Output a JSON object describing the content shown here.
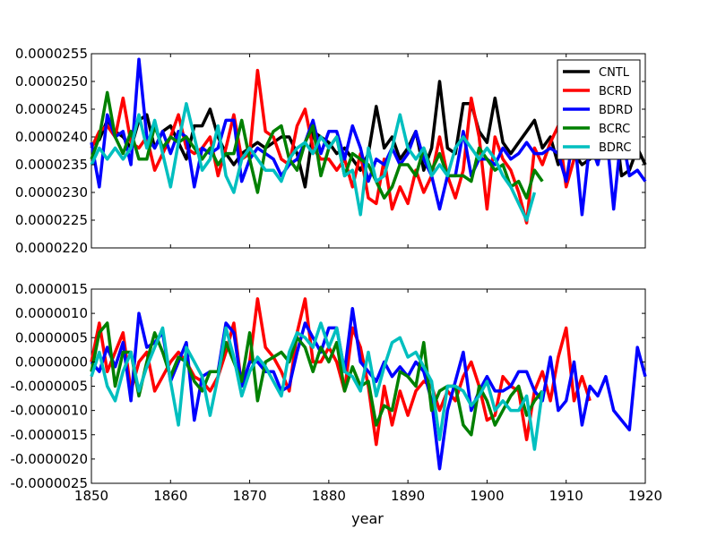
{
  "chart_data": [
    {
      "type": "line",
      "panel": "top",
      "xlabel": "",
      "ylabel": "",
      "xlim": [
        1850,
        1920
      ],
      "ylim": [
        2.2e-05,
        2.55e-05
      ],
      "yticks": [
        2.2e-05,
        2.25e-05,
        2.3e-05,
        2.35e-05,
        2.4e-05,
        2.45e-05,
        2.5e-05,
        2.55e-05
      ],
      "ytick_labels": [
        "0.0000220",
        "0.0000225",
        "0.0000230",
        "0.0000235",
        "0.0000240",
        "0.0000245",
        "0.0000250",
        "0.0000255"
      ],
      "legend": {
        "position": "top-right",
        "entries": [
          "CNTL",
          "BCRD",
          "BDRD",
          "BCRC",
          "BDRC"
        ]
      },
      "series": [
        {
          "name": "CNTL",
          "color": "#000000",
          "x_start": 1850,
          "values": [
            2.385e-05,
            2.395e-05,
            2.43e-05,
            2.41e-05,
            2.4e-05,
            2.38e-05,
            2.43e-05,
            2.44e-05,
            2.38e-05,
            2.41e-05,
            2.42e-05,
            2.39e-05,
            2.36e-05,
            2.42e-05,
            2.42e-05,
            2.45e-05,
            2.4e-05,
            2.37e-05,
            2.35e-05,
            2.37e-05,
            2.38e-05,
            2.39e-05,
            2.38e-05,
            2.39e-05,
            2.4e-05,
            2.4e-05,
            2.37e-05,
            2.31e-05,
            2.41e-05,
            2.4e-05,
            2.39e-05,
            2.37e-05,
            2.38e-05,
            2.36e-05,
            2.34e-05,
            2.37e-05,
            2.455e-05,
            2.38e-05,
            2.4e-05,
            2.36e-05,
            2.38e-05,
            2.41e-05,
            2.34e-05,
            2.38e-05,
            2.5e-05,
            2.38e-05,
            2.37e-05,
            2.46e-05,
            2.46e-05,
            2.41e-05,
            2.39e-05,
            2.47e-05,
            2.39e-05,
            2.37e-05,
            2.39e-05,
            2.41e-05,
            2.43e-05,
            2.38e-05,
            2.4e-05,
            2.35e-05,
            2.41e-05,
            2.37e-05,
            2.35e-05,
            2.36e-05,
            2.43e-05,
            2.41e-05,
            2.45e-05,
            2.33e-05,
            2.34e-05,
            2.38e-05,
            2.35e-05
          ]
        },
        {
          "name": "BCRD",
          "color": "#ff0000",
          "x_start": 1850,
          "values": [
            2.38e-05,
            2.41e-05,
            2.42e-05,
            2.4e-05,
            2.47e-05,
            2.39e-05,
            2.38e-05,
            2.4e-05,
            2.34e-05,
            2.37e-05,
            2.4e-05,
            2.44e-05,
            2.38e-05,
            2.37e-05,
            2.38e-05,
            2.4e-05,
            2.33e-05,
            2.38e-05,
            2.44e-05,
            2.36e-05,
            2.37e-05,
            2.52e-05,
            2.41e-05,
            2.4e-05,
            2.36e-05,
            2.35e-05,
            2.42e-05,
            2.45e-05,
            2.38e-05,
            2.36e-05,
            2.36e-05,
            2.34e-05,
            2.36e-05,
            2.31e-05,
            2.37e-05,
            2.29e-05,
            2.28e-05,
            2.36e-05,
            2.27e-05,
            2.31e-05,
            2.28e-05,
            2.34e-05,
            2.3e-05,
            2.33e-05,
            2.4e-05,
            2.33e-05,
            2.29e-05,
            2.34e-05,
            2.47e-05,
            2.4e-05,
            2.27e-05,
            2.4e-05,
            2.36e-05,
            2.34e-05,
            2.3e-05,
            2.245e-05,
            2.38e-05,
            2.35e-05,
            2.39e-05,
            2.42e-05,
            2.31e-05,
            2.36e-05,
            2.37e-05,
            2.36e-05
          ]
        },
        {
          "name": "BDRD",
          "color": "#0000ff",
          "x_start": 1850,
          "values": [
            2.39e-05,
            2.31e-05,
            2.44e-05,
            2.4e-05,
            2.41e-05,
            2.35e-05,
            2.54e-05,
            2.4e-05,
            2.38e-05,
            2.41e-05,
            2.37e-05,
            2.41e-05,
            2.4e-05,
            2.31e-05,
            2.38e-05,
            2.37e-05,
            2.38e-05,
            2.43e-05,
            2.43e-05,
            2.32e-05,
            2.36e-05,
            2.38e-05,
            2.37e-05,
            2.36e-05,
            2.33e-05,
            2.35e-05,
            2.36e-05,
            2.39e-05,
            2.43e-05,
            2.37e-05,
            2.41e-05,
            2.41e-05,
            2.36e-05,
            2.42e-05,
            2.38e-05,
            2.32e-05,
            2.36e-05,
            2.35e-05,
            2.38e-05,
            2.35e-05,
            2.37e-05,
            2.41e-05,
            2.36e-05,
            2.33e-05,
            2.27e-05,
            2.33e-05,
            2.33e-05,
            2.41e-05,
            2.33e-05,
            2.36e-05,
            2.36e-05,
            2.35e-05,
            2.38e-05,
            2.36e-05,
            2.37e-05,
            2.39e-05,
            2.37e-05,
            2.37e-05,
            2.38e-05,
            2.37e-05,
            2.32e-05,
            2.41e-05,
            2.26e-05,
            2.39e-05,
            2.35e-05,
            2.42e-05,
            2.27e-05,
            2.41e-05,
            2.33e-05,
            2.34e-05,
            2.32e-05
          ]
        },
        {
          "name": "BCRC",
          "color": "#008000",
          "x_start": 1850,
          "values": [
            2.36e-05,
            2.4e-05,
            2.48e-05,
            2.4e-05,
            2.37e-05,
            2.41e-05,
            2.36e-05,
            2.36e-05,
            2.42e-05,
            2.38e-05,
            2.4e-05,
            2.39e-05,
            2.4e-05,
            2.38e-05,
            2.36e-05,
            2.38e-05,
            2.35e-05,
            2.37e-05,
            2.37e-05,
            2.43e-05,
            2.36e-05,
            2.3e-05,
            2.38e-05,
            2.41e-05,
            2.42e-05,
            2.36e-05,
            2.34e-05,
            2.39e-05,
            2.42e-05,
            2.33e-05,
            2.38e-05,
            2.4e-05,
            2.33e-05,
            2.37e-05,
            2.36e-05,
            2.35e-05,
            2.32e-05,
            2.29e-05,
            2.31e-05,
            2.35e-05,
            2.35e-05,
            2.33e-05,
            2.38e-05,
            2.34e-05,
            2.37e-05,
            2.33e-05,
            2.33e-05,
            2.33e-05,
            2.32e-05,
            2.38e-05,
            2.36e-05,
            2.34e-05,
            2.35e-05,
            2.31e-05,
            2.32e-05,
            2.29e-05,
            2.34e-05,
            2.32e-05
          ]
        },
        {
          "name": "BDRC",
          "color": "#00bfbf",
          "x_start": 1850,
          "values": [
            2.35e-05,
            2.38e-05,
            2.36e-05,
            2.38e-05,
            2.36e-05,
            2.38e-05,
            2.44e-05,
            2.38e-05,
            2.43e-05,
            2.37e-05,
            2.31e-05,
            2.39e-05,
            2.46e-05,
            2.4e-05,
            2.34e-05,
            2.36e-05,
            2.42e-05,
            2.33e-05,
            2.3e-05,
            2.36e-05,
            2.38e-05,
            2.36e-05,
            2.34e-05,
            2.34e-05,
            2.32e-05,
            2.36e-05,
            2.38e-05,
            2.39e-05,
            2.37e-05,
            2.4e-05,
            2.38e-05,
            2.4e-05,
            2.33e-05,
            2.34e-05,
            2.26e-05,
            2.38e-05,
            2.32e-05,
            2.33e-05,
            2.38e-05,
            2.44e-05,
            2.38e-05,
            2.36e-05,
            2.38e-05,
            2.33e-05,
            2.35e-05,
            2.33e-05,
            2.38e-05,
            2.4e-05,
            2.38e-05,
            2.36e-05,
            2.38e-05,
            2.36e-05,
            2.33e-05,
            2.31e-05,
            2.28e-05,
            2.25e-05,
            2.3e-05
          ]
        }
      ]
    },
    {
      "type": "line",
      "panel": "bottom",
      "xlabel": "year",
      "ylabel": "",
      "xlim": [
        1850,
        1920
      ],
      "ylim": [
        -2.5e-06,
        1.5e-06
      ],
      "xticks": [
        1850,
        1860,
        1870,
        1880,
        1890,
        1900,
        1910,
        1920
      ],
      "xtick_labels": [
        "1850",
        "1860",
        "1870",
        "1880",
        "1890",
        "1900",
        "1910",
        "1920"
      ],
      "yticks": [
        -2.5e-06,
        -2e-06,
        -1.5e-06,
        -1e-06,
        -5e-07,
        0,
        5e-07,
        1e-06,
        1.5e-06
      ],
      "ytick_labels": [
        "-0.0000025",
        "-0.0000020",
        "-0.0000015",
        "-0.0000010",
        "-0.0000005",
        "0.0000000",
        "0.0000005",
        "0.0000010",
        "0.0000015"
      ],
      "series": [
        {
          "name": "BCRD",
          "color": "#ff0000",
          "x_start": 1850,
          "values": [
            0.0,
            8e-07,
            -2e-07,
            2e-07,
            6e-07,
            -6e-07,
            0.0,
            2e-07,
            -6e-07,
            -3e-07,
            0.0,
            2e-07,
            0.0,
            -3e-07,
            -4e-07,
            -6e-07,
            -3e-07,
            2e-07,
            8e-07,
            -5e-07,
            0.0,
            1.3e-06,
            3e-07,
            1e-07,
            -2e-07,
            -6e-07,
            6e-07,
            1.3e-06,
            0.0,
            0.0,
            3e-07,
            0.0,
            -6e-07,
            7e-07,
            3e-07,
            -5e-07,
            -1.7e-06,
            -5e-07,
            -1.3e-06,
            -6e-07,
            -1.1e-06,
            -6e-07,
            -4e-07,
            -5e-07,
            -1e-06,
            -6e-07,
            -8e-07,
            -3e-07,
            0.0,
            -5e-07,
            -1.2e-06,
            -1.1e-06,
            -3e-07,
            -5e-07,
            -6e-07,
            -1.6e-06,
            -6e-07,
            -2e-07,
            -8e-07,
            1e-07,
            7e-07,
            -8e-07,
            -3e-07,
            -8e-07
          ]
        },
        {
          "name": "BDRD",
          "color": "#0000ff",
          "x_start": 1850,
          "values": [
            0.0,
            -2e-07,
            3e-07,
            -1e-07,
            4e-07,
            -8e-07,
            1e-06,
            3e-07,
            4e-07,
            6e-07,
            -4e-07,
            0.0,
            4e-07,
            -1.2e-06,
            -3e-07,
            -2e-07,
            -2e-07,
            8e-07,
            6e-07,
            -5e-07,
            0.0,
            0.0,
            -2e-07,
            -2e-07,
            -6e-07,
            -5e-07,
            2e-07,
            8e-07,
            5e-07,
            2e-07,
            7e-07,
            7e-07,
            -2e-07,
            1.1e-06,
            0.0,
            -2e-07,
            -4e-07,
            0.0,
            -3e-07,
            -1e-07,
            -3e-07,
            0.0,
            -2e-07,
            -8e-07,
            -2.2e-06,
            -1e-06,
            -4e-07,
            2e-07,
            -1e-06,
            -6e-07,
            -3e-07,
            -6e-07,
            -6e-07,
            -5e-07,
            -2e-07,
            -2e-07,
            -6e-07,
            -8e-07,
            1e-07,
            -1e-06,
            -8e-07,
            0.0,
            -1.3e-06,
            -5e-07,
            -7e-07,
            -3e-07,
            -1e-06,
            -1.2e-06,
            -1.4e-06,
            3e-07,
            -3e-07
          ]
        },
        {
          "name": "BCRC",
          "color": "#008000",
          "x_start": 1850,
          "values": [
            -2e-07,
            6e-07,
            8e-07,
            -5e-07,
            2e-07,
            2e-07,
            -7e-07,
            0.0,
            6e-07,
            2e-07,
            -3e-07,
            1e-07,
            0.0,
            -4e-07,
            -6e-07,
            -2e-07,
            -2e-07,
            4e-07,
            0.0,
            -4e-07,
            6e-07,
            -8e-07,
            0.0,
            1e-07,
            2e-07,
            0.0,
            5e-07,
            3e-07,
            -2e-07,
            3e-07,
            0.0,
            4e-07,
            -6e-07,
            -1e-07,
            -5e-07,
            -4e-07,
            -1.3e-06,
            -9e-07,
            -1e-06,
            -2e-07,
            -3e-07,
            -5e-07,
            4e-07,
            -1e-06,
            -6e-07,
            -5e-07,
            -5e-07,
            -1.3e-06,
            -1.5e-06,
            -5e-07,
            -8e-07,
            -1.3e-06,
            -1e-06,
            -7e-07,
            -5e-07,
            -1.1e-06,
            -8e-07,
            -6e-07
          ]
        },
        {
          "name": "BDRC",
          "color": "#00bfbf",
          "x_start": 1850,
          "values": [
            -3e-07,
            2e-07,
            -5e-07,
            -8e-07,
            -2e-07,
            2e-07,
            -6e-07,
            -1e-07,
            3e-07,
            7e-07,
            -4e-07,
            -1.3e-06,
            3e-07,
            0.0,
            -3e-07,
            -1.1e-06,
            -3e-07,
            7e-07,
            1e-07,
            -7e-07,
            -2e-07,
            1e-07,
            -1e-07,
            -4e-07,
            -7e-07,
            2e-07,
            6e-07,
            5e-07,
            3e-07,
            8e-07,
            3e-07,
            7e-07,
            -2e-07,
            -3e-07,
            -6e-07,
            2e-07,
            -7e-07,
            -1e-07,
            4e-07,
            5e-07,
            1e-07,
            2e-07,
            -1e-07,
            -4e-07,
            -1.6e-06,
            -5e-07,
            -5e-07,
            -6e-07,
            -9e-07,
            -7e-07,
            -4e-07,
            -1e-06,
            -8e-07,
            -1e-06,
            -1e-06,
            -7e-07,
            -1.8e-06,
            -6e-07
          ]
        }
      ]
    }
  ]
}
